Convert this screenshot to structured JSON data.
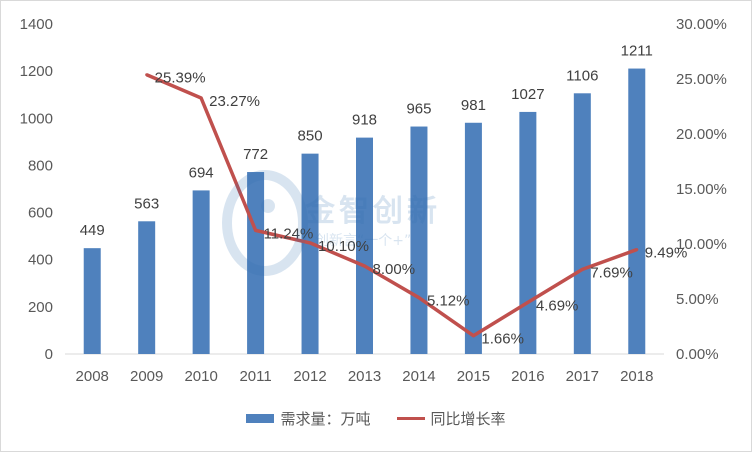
{
  "chart_data": {
    "type": "bar",
    "categories": [
      "2008",
      "2009",
      "2010",
      "2011",
      "2012",
      "2013",
      "2014",
      "2015",
      "2016",
      "2017",
      "2018"
    ],
    "series": [
      {
        "name": "需求量：万吨",
        "type": "bar",
        "axis": "left",
        "values": [
          449,
          563,
          694,
          772,
          850,
          918,
          965,
          981,
          1027,
          1106,
          1211
        ],
        "labels": [
          "449",
          "563",
          "694",
          "772",
          "850",
          "918",
          "965",
          "981",
          "1027",
          "1106",
          "1211"
        ],
        "color": "#4f81bd"
      },
      {
        "name": "同比增长率",
        "type": "line",
        "axis": "right",
        "values": [
          null,
          25.39,
          23.27,
          11.24,
          10.1,
          8.0,
          5.12,
          1.66,
          4.69,
          7.69,
          9.49
        ],
        "labels": [
          "",
          "25.39%",
          "23.27%",
          "11.24%",
          "10.10%",
          "8.00%",
          "5.12%",
          "1.66%",
          "4.69%",
          "7.69%",
          "9.49%"
        ],
        "color": "#c0504d"
      }
    ],
    "ylim_left": [
      0,
      1400
    ],
    "yticks_left": [
      "0",
      "200",
      "400",
      "600",
      "800",
      "1000",
      "1200",
      "1400"
    ],
    "ylim_right": [
      0,
      30
    ],
    "yticks_right": [
      "0.00%",
      "5.00%",
      "10.00%",
      "15.00%",
      "20.00%",
      "25.00%",
      "30.00%"
    ],
    "grid": false,
    "legend_position": "bottom"
  },
  "watermark": {
    "text": "金智创新",
    "subtext": "创新言“一个+”"
  }
}
